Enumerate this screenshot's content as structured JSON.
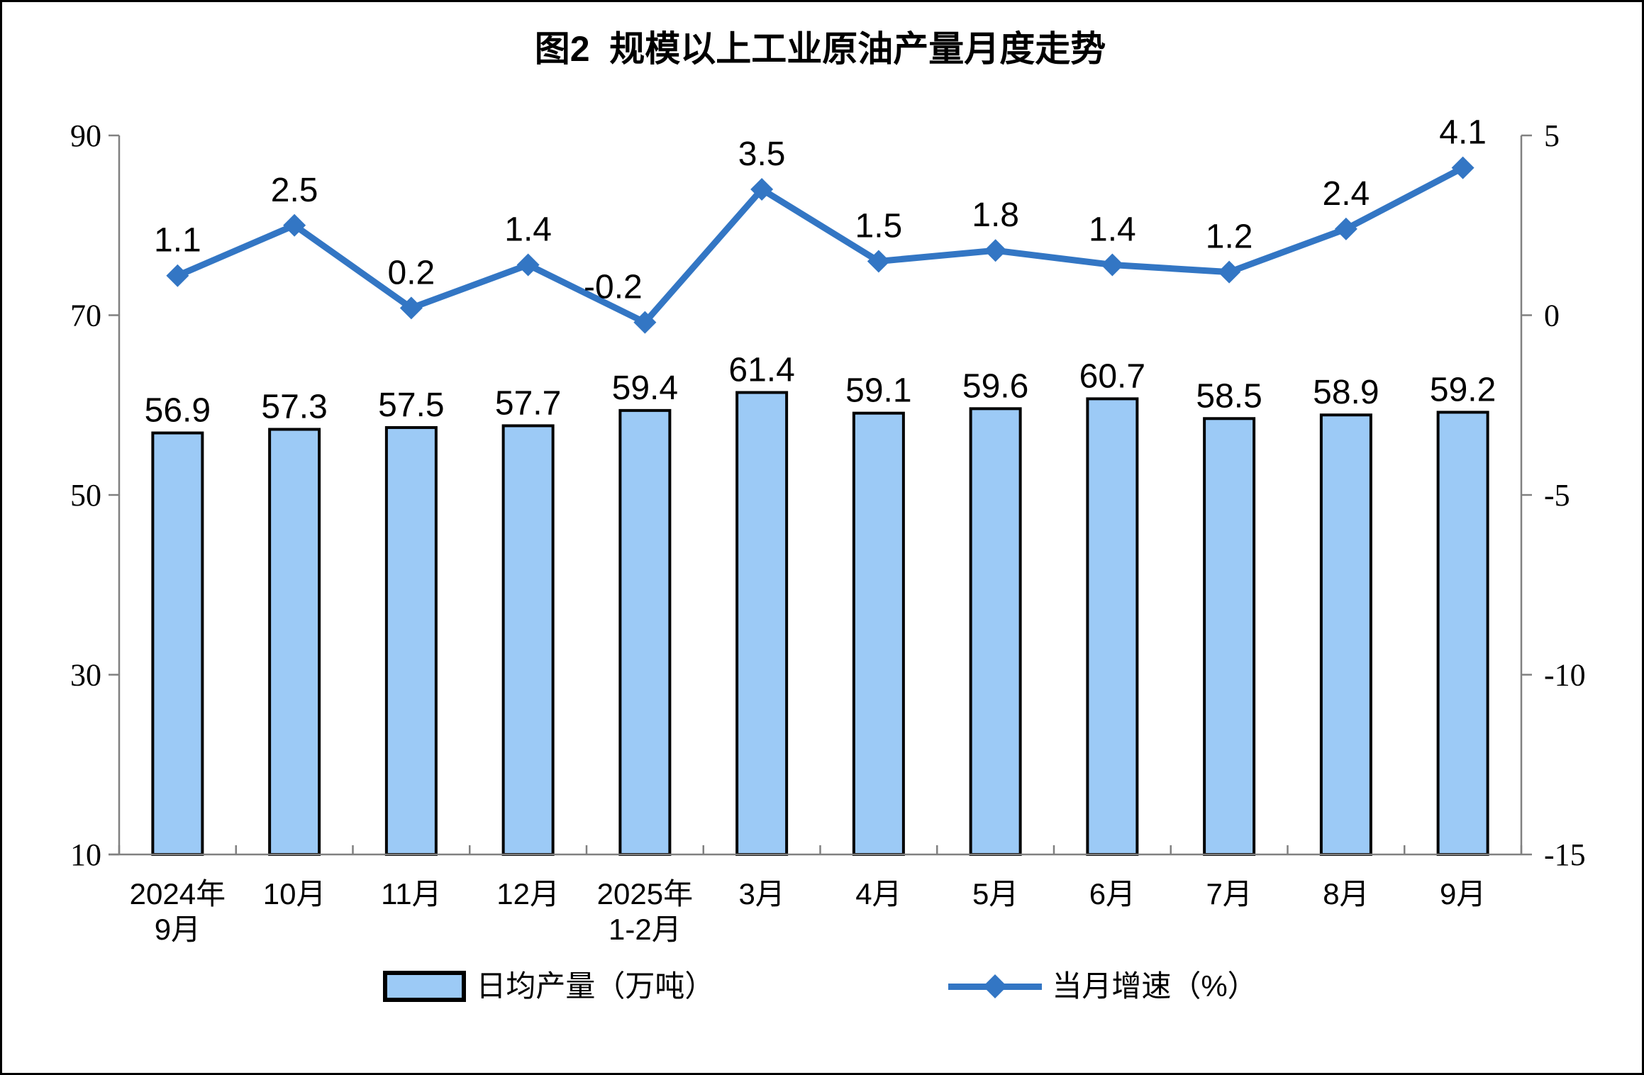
{
  "chart_data": {
    "type": "combo-bar-line",
    "title": "图2  规模以上工业原油产量月度走势",
    "categories": [
      [
        "2024年",
        "9月"
      ],
      [
        "10月"
      ],
      [
        "11月"
      ],
      [
        "12月"
      ],
      [
        "2025年",
        "1-2月"
      ],
      [
        "3月"
      ],
      [
        "4月"
      ],
      [
        "5月"
      ],
      [
        "6月"
      ],
      [
        "7月"
      ],
      [
        "8月"
      ],
      [
        "9月"
      ]
    ],
    "series": [
      {
        "name": "日均产量（万吨）",
        "type": "bar",
        "axis": "left",
        "values": [
          56.9,
          57.3,
          57.5,
          57.7,
          59.4,
          61.4,
          59.1,
          59.6,
          60.7,
          58.5,
          58.9,
          59.2
        ],
        "fill": "#9CCAF6",
        "stroke": "#000000"
      },
      {
        "name": "当月增速（%）",
        "type": "line",
        "axis": "right",
        "values": [
          1.1,
          2.5,
          0.2,
          1.4,
          -0.2,
          3.5,
          1.5,
          1.8,
          1.4,
          1.2,
          2.4,
          4.1
        ],
        "color": "#3376C4",
        "marker": "diamond"
      }
    ],
    "left_axis": {
      "min": 10,
      "max": 90,
      "ticks": [
        90,
        70,
        50,
        30,
        10
      ]
    },
    "right_axis": {
      "min": -15,
      "max": 5,
      "ticks": [
        5,
        0,
        -5,
        -10,
        -15
      ]
    },
    "axis_color": "#808080",
    "text_color": "#000000",
    "background": "#FFFFFF",
    "grid": "off",
    "legend_position": "bottom-center"
  }
}
